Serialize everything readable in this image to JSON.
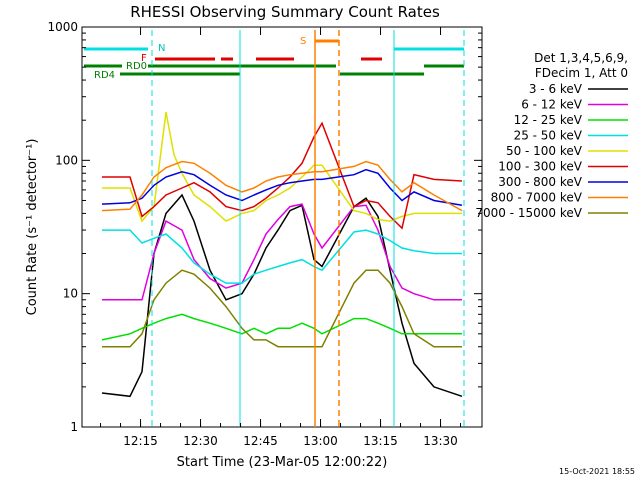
{
  "chart_data": {
    "type": "line",
    "title": "RHESSI Observing Summary Count Rates",
    "xlabel": "Start Time (23-Mar-05 12:00:22)",
    "ylabel": "Count Rate (s⁻¹ detector⁻¹)",
    "y_scale": "log",
    "xlim": [
      "12:00:22",
      "13:40:00"
    ],
    "ylim": [
      1,
      1000
    ],
    "x_ticks": [
      "12:15",
      "12:30",
      "12:45",
      "13:00",
      "13:15",
      "13:30"
    ],
    "y_ticks": [
      "1",
      "10",
      "100",
      "1000"
    ],
    "legend_header": [
      "Det 1,3,4,5,6,9,",
      "FDecim 1, Att 0"
    ],
    "legend_position": "right",
    "footer_date": "15-Oct-2021 18:55",
    "flags": {
      "N_label": "N",
      "F_label": "F",
      "S_label": "S",
      "RD0_label": "RD0",
      "RD4_label": "RD4"
    },
    "series": [
      {
        "name": "3 - 6 keV",
        "color": "#000000",
        "values": [
          [
            5,
            1.8
          ],
          [
            12,
            1.7
          ],
          [
            15,
            2.6
          ],
          [
            18,
            20
          ],
          [
            21,
            40
          ],
          [
            25,
            55
          ],
          [
            28,
            35
          ],
          [
            32,
            15
          ],
          [
            36,
            9
          ],
          [
            40,
            10
          ],
          [
            43,
            14
          ],
          [
            46,
            22
          ],
          [
            49,
            30
          ],
          [
            52,
            42
          ],
          [
            55,
            46
          ],
          [
            58,
            18
          ],
          [
            60,
            16
          ],
          [
            68,
            45
          ],
          [
            71,
            52
          ],
          [
            74,
            38
          ],
          [
            77,
            15
          ],
          [
            80,
            6
          ],
          [
            83,
            3
          ],
          [
            88,
            2
          ],
          [
            95,
            1.7
          ]
        ]
      },
      {
        "name": "6 - 12 keV",
        "color": "#e000e0",
        "values": [
          [
            5,
            9
          ],
          [
            12,
            9
          ],
          [
            15,
            9
          ],
          [
            18,
            20
          ],
          [
            21,
            35
          ],
          [
            25,
            30
          ],
          [
            28,
            18
          ],
          [
            32,
            13
          ],
          [
            36,
            11
          ],
          [
            40,
            12
          ],
          [
            43,
            18
          ],
          [
            46,
            28
          ],
          [
            49,
            36
          ],
          [
            52,
            45
          ],
          [
            55,
            47
          ],
          [
            58,
            28
          ],
          [
            60,
            22
          ],
          [
            68,
            45
          ],
          [
            71,
            46
          ],
          [
            74,
            30
          ],
          [
            77,
            16
          ],
          [
            80,
            11
          ],
          [
            83,
            10
          ],
          [
            88,
            9
          ],
          [
            95,
            9
          ]
        ]
      },
      {
        "name": "12 - 25 keV",
        "color": "#00e000",
        "values": [
          [
            5,
            4.5
          ],
          [
            12,
            5
          ],
          [
            15,
            5.5
          ],
          [
            18,
            6
          ],
          [
            21,
            6.5
          ],
          [
            25,
            7
          ],
          [
            28,
            6.5
          ],
          [
            32,
            6
          ],
          [
            36,
            5.5
          ],
          [
            40,
            5
          ],
          [
            43,
            5.5
          ],
          [
            46,
            5
          ],
          [
            49,
            5.5
          ],
          [
            52,
            5.5
          ],
          [
            55,
            6
          ],
          [
            58,
            5.5
          ],
          [
            60,
            5
          ],
          [
            68,
            6.5
          ],
          [
            71,
            6.5
          ],
          [
            74,
            6
          ],
          [
            77,
            5.5
          ],
          [
            80,
            5
          ],
          [
            83,
            5
          ],
          [
            88,
            5
          ],
          [
            95,
            5
          ]
        ]
      },
      {
        "name": "25 - 50 keV",
        "color": "#00e0e0",
        "values": [
          [
            5,
            30
          ],
          [
            12,
            30
          ],
          [
            15,
            24
          ],
          [
            18,
            26
          ],
          [
            21,
            28
          ],
          [
            25,
            22
          ],
          [
            28,
            17
          ],
          [
            32,
            14
          ],
          [
            36,
            12
          ],
          [
            40,
            12
          ],
          [
            43,
            14
          ],
          [
            46,
            15
          ],
          [
            49,
            16
          ],
          [
            52,
            17
          ],
          [
            55,
            18
          ],
          [
            58,
            16
          ],
          [
            60,
            15
          ],
          [
            68,
            29
          ],
          [
            71,
            30
          ],
          [
            74,
            28
          ],
          [
            77,
            25
          ],
          [
            80,
            22
          ],
          [
            83,
            21
          ],
          [
            88,
            20
          ],
          [
            95,
            20
          ]
        ]
      },
      {
        "name": "50 - 100 keV",
        "color": "#e0e000",
        "values": [
          [
            5,
            62
          ],
          [
            12,
            62
          ],
          [
            15,
            35
          ],
          [
            18,
            45
          ],
          [
            21,
            230
          ],
          [
            23,
            110
          ],
          [
            25,
            80
          ],
          [
            28,
            55
          ],
          [
            32,
            45
          ],
          [
            36,
            35
          ],
          [
            40,
            40
          ],
          [
            43,
            42
          ],
          [
            46,
            50
          ],
          [
            49,
            55
          ],
          [
            52,
            62
          ],
          [
            55,
            75
          ],
          [
            58,
            92
          ],
          [
            60,
            92
          ],
          [
            68,
            42
          ],
          [
            71,
            40
          ],
          [
            74,
            36
          ],
          [
            77,
            35
          ],
          [
            80,
            38
          ],
          [
            83,
            40
          ],
          [
            88,
            40
          ],
          [
            95,
            40
          ]
        ]
      },
      {
        "name": "100 - 300 keV",
        "color": "#e00000",
        "values": [
          [
            5,
            75
          ],
          [
            12,
            75
          ],
          [
            15,
            38
          ],
          [
            18,
            45
          ],
          [
            21,
            55
          ],
          [
            25,
            62
          ],
          [
            28,
            68
          ],
          [
            32,
            58
          ],
          [
            36,
            45
          ],
          [
            40,
            42
          ],
          [
            43,
            45
          ],
          [
            46,
            52
          ],
          [
            49,
            62
          ],
          [
            52,
            75
          ],
          [
            55,
            95
          ],
          [
            58,
            150
          ],
          [
            60,
            190
          ],
          [
            68,
            45
          ],
          [
            71,
            50
          ],
          [
            74,
            48
          ],
          [
            77,
            38
          ],
          [
            80,
            31
          ],
          [
            83,
            78
          ],
          [
            88,
            72
          ],
          [
            95,
            70
          ]
        ]
      },
      {
        "name": "300 - 800 keV",
        "color": "#0000e0",
        "values": [
          [
            5,
            47
          ],
          [
            12,
            48
          ],
          [
            15,
            52
          ],
          [
            18,
            65
          ],
          [
            21,
            75
          ],
          [
            25,
            82
          ],
          [
            28,
            78
          ],
          [
            32,
            65
          ],
          [
            36,
            55
          ],
          [
            40,
            50
          ],
          [
            43,
            55
          ],
          [
            46,
            60
          ],
          [
            49,
            65
          ],
          [
            52,
            68
          ],
          [
            55,
            70
          ],
          [
            58,
            72
          ],
          [
            60,
            72
          ],
          [
            68,
            78
          ],
          [
            71,
            85
          ],
          [
            74,
            80
          ],
          [
            77,
            62
          ],
          [
            80,
            50
          ],
          [
            83,
            58
          ],
          [
            88,
            50
          ],
          [
            95,
            46
          ]
        ]
      },
      {
        "name": "800 - 7000 keV",
        "color": "#ff8000",
        "values": [
          [
            5,
            42
          ],
          [
            12,
            43
          ],
          [
            15,
            55
          ],
          [
            18,
            75
          ],
          [
            21,
            88
          ],
          [
            25,
            98
          ],
          [
            28,
            95
          ],
          [
            32,
            80
          ],
          [
            36,
            65
          ],
          [
            40,
            58
          ],
          [
            43,
            62
          ],
          [
            46,
            70
          ],
          [
            49,
            75
          ],
          [
            52,
            78
          ],
          [
            55,
            80
          ],
          [
            58,
            82
          ],
          [
            60,
            82
          ],
          [
            68,
            90
          ],
          [
            71,
            98
          ],
          [
            74,
            92
          ],
          [
            77,
            72
          ],
          [
            80,
            58
          ],
          [
            83,
            68
          ],
          [
            88,
            55
          ],
          [
            95,
            42
          ]
        ]
      },
      {
        "name": "7000 - 15000 keV",
        "color": "#808000",
        "values": [
          [
            5,
            4
          ],
          [
            12,
            4
          ],
          [
            15,
            5
          ],
          [
            18,
            9
          ],
          [
            21,
            12
          ],
          [
            25,
            15
          ],
          [
            28,
            14
          ],
          [
            32,
            11
          ],
          [
            36,
            8
          ],
          [
            40,
            5.5
          ],
          [
            43,
            4.5
          ],
          [
            46,
            4.5
          ],
          [
            49,
            4
          ],
          [
            52,
            4
          ],
          [
            55,
            4
          ],
          [
            58,
            4
          ],
          [
            60,
            4
          ],
          [
            68,
            12
          ],
          [
            71,
            15
          ],
          [
            74,
            15
          ],
          [
            77,
            12
          ],
          [
            80,
            8
          ],
          [
            83,
            5
          ],
          [
            88,
            4
          ],
          [
            95,
            4
          ]
        ]
      }
    ]
  }
}
